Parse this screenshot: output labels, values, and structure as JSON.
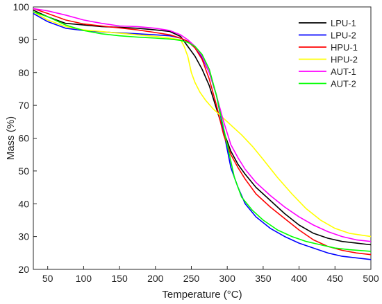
{
  "chart_data": {
    "type": "line",
    "xlabel": "Temperature (°C)",
    "ylabel": "Mass (%)",
    "xlim": [
      30,
      500
    ],
    "ylim": [
      20,
      100
    ],
    "xticks": [
      50,
      100,
      150,
      200,
      250,
      300,
      350,
      400,
      450,
      500
    ],
    "yticks": [
      20,
      30,
      40,
      50,
      60,
      70,
      80,
      90,
      100
    ],
    "grid": false,
    "legend": "top-right",
    "series": [
      {
        "name": "LPU-1",
        "color": "#000000",
        "x": [
          30,
          50,
          75,
          100,
          125,
          150,
          175,
          200,
          220,
          235,
          245,
          255,
          265,
          275,
          285,
          295,
          305,
          315,
          325,
          340,
          360,
          380,
          400,
          420,
          440,
          460,
          480,
          500
        ],
        "y": [
          99,
          97,
          95,
          94.5,
          94,
          93.8,
          93.5,
          93,
          92.5,
          91,
          88,
          85,
          81,
          76,
          69,
          62,
          56,
          52,
          49,
          45,
          41,
          37,
          33.5,
          31,
          29.5,
          28.5,
          28,
          27.5
        ]
      },
      {
        "name": "LPU-2",
        "color": "#0000ff",
        "x": [
          30,
          50,
          75,
          100,
          125,
          150,
          175,
          200,
          220,
          235,
          245,
          255,
          265,
          275,
          285,
          295,
          305,
          315,
          325,
          340,
          360,
          380,
          400,
          420,
          440,
          460,
          480,
          500
        ],
        "y": [
          98,
          95.5,
          93.5,
          92.8,
          92.4,
          92.1,
          91.8,
          91.5,
          91.2,
          90.5,
          89.5,
          87.5,
          84.5,
          80,
          73,
          62,
          51,
          45,
          40,
          36,
          32.5,
          30,
          28,
          26.5,
          25,
          24,
          23.5,
          23
        ]
      },
      {
        "name": "HPU-1",
        "color": "#ff0000",
        "x": [
          30,
          50,
          75,
          100,
          125,
          150,
          175,
          200,
          220,
          235,
          245,
          255,
          265,
          275,
          285,
          295,
          305,
          315,
          325,
          340,
          360,
          380,
          400,
          420,
          440,
          460,
          480,
          500
        ],
        "y": [
          99.5,
          98,
          96,
          94.8,
          94.2,
          93.6,
          93,
          92.2,
          91.5,
          90.5,
          89.5,
          87.5,
          84,
          78,
          70,
          61,
          55,
          51,
          47.5,
          43,
          39,
          35.5,
          32,
          29,
          27,
          25.8,
          25,
          24.5
        ]
      },
      {
        "name": "HPU-2",
        "color": "#ffff00",
        "x": [
          30,
          50,
          75,
          100,
          125,
          150,
          175,
          200,
          220,
          235,
          240,
          245,
          250,
          255,
          262,
          270,
          280,
          290,
          300,
          310,
          320,
          335,
          350,
          370,
          390,
          410,
          430,
          450,
          470,
          500
        ],
        "y": [
          98.5,
          96,
          94,
          93,
          92.5,
          92,
          91.5,
          91,
          90.5,
          90,
          88,
          85,
          80,
          77,
          74,
          71.5,
          69,
          67,
          65,
          63,
          61,
          57.5,
          53.5,
          48,
          43,
          38.5,
          35,
          32.5,
          31,
          30
        ]
      },
      {
        "name": "AUT-1",
        "color": "#ff00ff",
        "x": [
          30,
          50,
          75,
          100,
          125,
          150,
          175,
          200,
          220,
          235,
          245,
          255,
          265,
          275,
          285,
          295,
          305,
          315,
          325,
          340,
          360,
          380,
          400,
          420,
          440,
          460,
          480,
          500
        ],
        "y": [
          99.5,
          98.8,
          97.5,
          96,
          95,
          94.2,
          94,
          93.5,
          92.8,
          91.5,
          90,
          88,
          85,
          80,
          73,
          65,
          58,
          54,
          50.5,
          46.5,
          42.5,
          39,
          36,
          33.5,
          31.5,
          30,
          29,
          28.5
        ]
      },
      {
        "name": "AUT-2",
        "color": "#00ff00",
        "x": [
          30,
          50,
          75,
          100,
          125,
          150,
          175,
          200,
          220,
          235,
          245,
          255,
          265,
          275,
          285,
          292,
          300,
          310,
          320,
          335,
          350,
          370,
          390,
          410,
          430,
          450,
          470,
          500
        ],
        "y": [
          98.5,
          97,
          94.5,
          92.8,
          91.8,
          91.2,
          90.8,
          90.5,
          90.2,
          89.8,
          89.2,
          88,
          85.5,
          81,
          73,
          66,
          58,
          48,
          42,
          38,
          35,
          32,
          30,
          28.5,
          27.5,
          26.5,
          26,
          25.5
        ]
      }
    ]
  }
}
